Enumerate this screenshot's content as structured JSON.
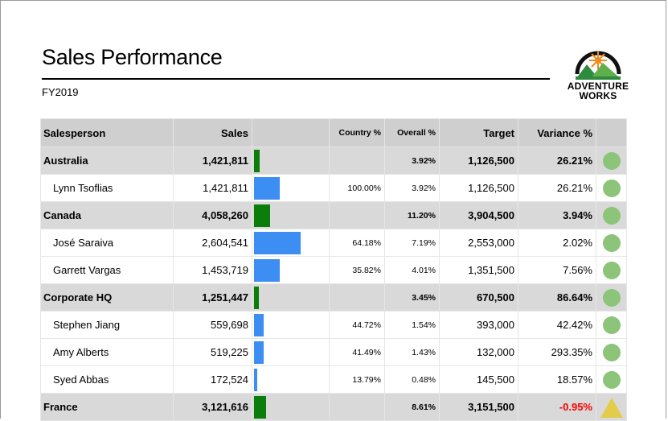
{
  "report": {
    "title": "Sales Performance",
    "subtitle": "FY2019",
    "logo_text": [
      "ADVENTURE",
      "WORKS"
    ]
  },
  "columns": [
    "Salesperson",
    "Sales",
    "",
    "Country %",
    "Overall %",
    "Target",
    "Variance %",
    ""
  ],
  "bar_max": 4058260,
  "rows": [
    {
      "type": "group",
      "name": "Australia",
      "sales": "1,421,811",
      "sales_value": 1421811,
      "country_pct": "",
      "overall_pct": "3.92%",
      "target": "1,126,500",
      "variance": "26.21%",
      "status": "good"
    },
    {
      "type": "detail",
      "name": "Lynn Tsoflias",
      "sales": "1,421,811",
      "sales_value": 1421811,
      "country_pct": "100.00%",
      "overall_pct": "3.92%",
      "target": "1,126,500",
      "variance": "26.21%",
      "status": "good"
    },
    {
      "type": "group",
      "name": "Canada",
      "sales": "4,058,260",
      "sales_value": 4058260,
      "country_pct": "",
      "overall_pct": "11.20%",
      "target": "3,904,500",
      "variance": "3.94%",
      "status": "good"
    },
    {
      "type": "detail",
      "name": "José Saraiva",
      "sales": "2,604,541",
      "sales_value": 2604541,
      "country_pct": "64.18%",
      "overall_pct": "7.19%",
      "target": "2,553,000",
      "variance": "2.02%",
      "status": "good"
    },
    {
      "type": "detail",
      "name": "Garrett Vargas",
      "sales": "1,453,719",
      "sales_value": 1453719,
      "country_pct": "35.82%",
      "overall_pct": "4.01%",
      "target": "1,351,500",
      "variance": "7.56%",
      "status": "good"
    },
    {
      "type": "group",
      "name": "Corporate HQ",
      "sales": "1,251,447",
      "sales_value": 1251447,
      "country_pct": "",
      "overall_pct": "3.45%",
      "target": "670,500",
      "variance": "86.64%",
      "status": "good"
    },
    {
      "type": "detail",
      "name": "Stephen Jiang",
      "sales": "559,698",
      "sales_value": 559698,
      "country_pct": "44.72%",
      "overall_pct": "1.54%",
      "target": "393,000",
      "variance": "42.42%",
      "status": "good"
    },
    {
      "type": "detail",
      "name": "Amy Alberts",
      "sales": "519,225",
      "sales_value": 519225,
      "country_pct": "41.49%",
      "overall_pct": "1.43%",
      "target": "132,000",
      "variance": "293.35%",
      "status": "good"
    },
    {
      "type": "detail",
      "name": "Syed Abbas",
      "sales": "172,524",
      "sales_value": 172524,
      "country_pct": "13.79%",
      "overall_pct": "0.48%",
      "target": "145,500",
      "variance": "18.57%",
      "status": "good"
    },
    {
      "type": "group",
      "name": "France",
      "sales": "3,121,616",
      "sales_value": 3121616,
      "country_pct": "",
      "overall_pct": "8.61%",
      "target": "3,151,500",
      "variance": "-0.95%",
      "status": "warning"
    }
  ],
  "colors": {
    "group_bar": "#0a7d0a",
    "detail_bar": "#3c8ef3",
    "good": "#8cc479",
    "warning": "#e3cc4c",
    "negative": "#ff0000"
  }
}
